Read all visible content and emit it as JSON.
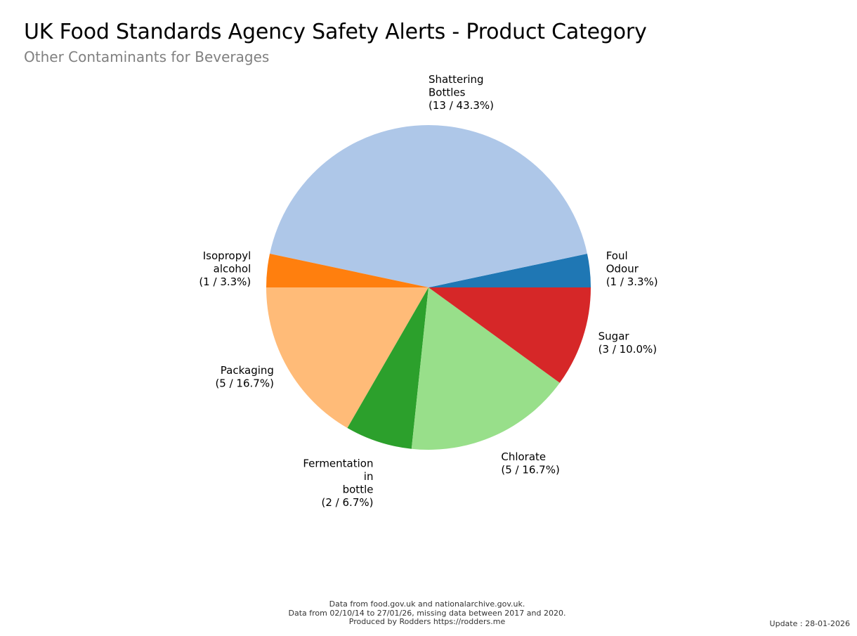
{
  "title": "UK Food Standards Agency Safety Alerts - Product Category",
  "subtitle": "Other Contaminants for Beverages",
  "chart_data": {
    "type": "pie",
    "title": "UK Food Standards Agency Safety Alerts - Product Category",
    "subtitle": "Other Contaminants for Beverages",
    "start_angle_deg": 0,
    "direction": "counterclockwise",
    "slices": [
      {
        "label": "Foul\nOdour",
        "value": 1,
        "percent": "3.3%",
        "color": "#1f77b4"
      },
      {
        "label": "Shattering\nBottles",
        "value": 13,
        "percent": "43.3%",
        "color": "#aec7e8"
      },
      {
        "label": "Isopropyl\nalcohol",
        "value": 1,
        "percent": "3.3%",
        "color": "#ff7f0e"
      },
      {
        "label": "Packaging",
        "value": 5,
        "percent": "16.7%",
        "color": "#ffbb78"
      },
      {
        "label": "Fermentation\nin\nbottle",
        "value": 2,
        "percent": "6.7%",
        "color": "#2ca02c"
      },
      {
        "label": "Chlorate",
        "value": 5,
        "percent": "16.7%",
        "color": "#98df8a"
      },
      {
        "label": "Sugar",
        "value": 3,
        "percent": "10.0%",
        "color": "#d62728"
      }
    ]
  },
  "footer": {
    "line1": "Data from food.gov.uk and nationalarchive.gov.uk.",
    "line2": "Data from 02/10/14 to 27/01/26, missing data between 2017 and 2020.",
    "line3": "Produced by Rodders https://rodders.me"
  },
  "update": "Update : 28-01-2026"
}
